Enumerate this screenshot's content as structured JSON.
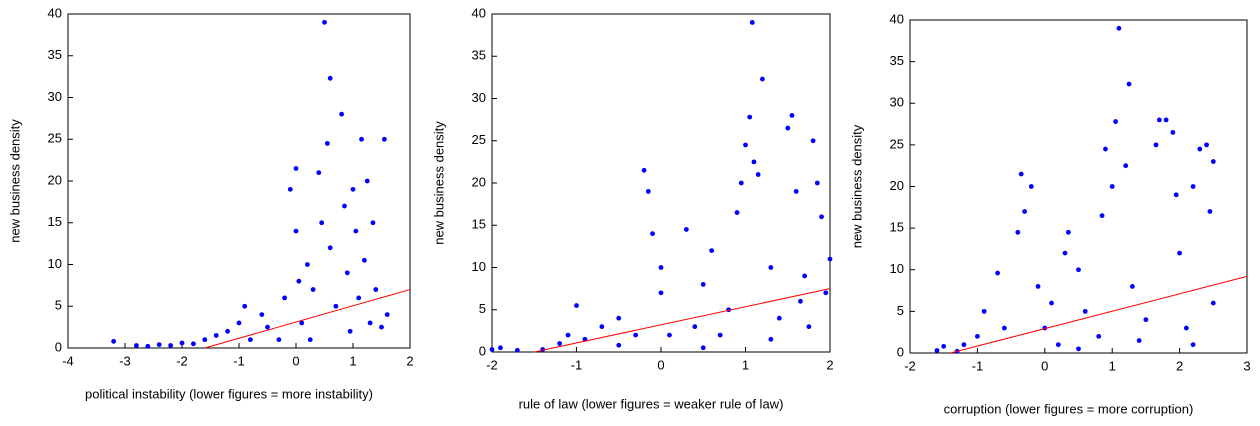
{
  "chart_data": [
    {
      "type": "scatter",
      "x_label": "political instability (lower figures = more instability)",
      "y_label": "new business density",
      "xlim": [
        -4,
        2
      ],
      "xticks": [
        -4,
        -3,
        -2,
        -1,
        0,
        1,
        2
      ],
      "ylim": [
        0,
        40
      ],
      "yticks": [
        0,
        5,
        10,
        15,
        20,
        25,
        30,
        35,
        40
      ],
      "series": [
        {
          "color": "#0000ff",
          "x": [
            -3.2,
            -2.8,
            -2.6,
            -2.4,
            -2.2,
            -2,
            -1.8,
            -1.6,
            -1.4,
            -1.2,
            -1,
            -0.9,
            -0.8,
            -0.6,
            -0.5,
            -0.3,
            -0.2,
            -0.1,
            0,
            0,
            0.05,
            0.1,
            0.2,
            0.25,
            0.3,
            0.4,
            0.45,
            0.5,
            0.55,
            0.6,
            0.6,
            0.7,
            0.8,
            0.85,
            0.9,
            0.95,
            1,
            1.05,
            1.1,
            1.15,
            1.2,
            1.25,
            1.3,
            1.35,
            1.4,
            1.5,
            1.55,
            1.6
          ],
          "y": [
            0.8,
            0.3,
            0.2,
            0.4,
            0.3,
            0.6,
            0.5,
            1,
            1.5,
            2,
            3,
            5,
            1,
            4,
            2.5,
            1,
            6,
            19,
            21.5,
            14,
            8,
            3,
            10,
            1,
            7,
            21,
            15,
            39,
            24.5,
            32.3,
            12,
            5,
            28,
            17,
            9,
            2,
            19,
            14,
            6,
            25,
            10.5,
            20,
            3,
            15,
            7,
            2.5,
            25,
            4
          ]
        }
      ],
      "fit_line": {
        "color": "#ff0000",
        "x": [
          -1.6,
          2
        ],
        "y": [
          0,
          7
        ]
      }
    },
    {
      "type": "scatter",
      "x_label": "rule of law (lower figures = weaker rule of law)",
      "y_label": "new business density",
      "xlim": [
        -2,
        2
      ],
      "xticks": [
        -2,
        -1,
        0,
        1,
        2
      ],
      "ylim": [
        0,
        40
      ],
      "yticks": [
        0,
        5,
        10,
        15,
        20,
        25,
        30,
        35,
        40
      ],
      "series": [
        {
          "color": "#0000ff",
          "x": [
            -2,
            -1.9,
            -1.7,
            -1.4,
            -1.2,
            -1.1,
            -1,
            -0.9,
            -0.7,
            -0.5,
            -0.3,
            -0.2,
            -0.15,
            -0.1,
            0,
            0,
            0.1,
            0.3,
            0.4,
            0.5,
            0.6,
            0.7,
            0.8,
            0.9,
            0.95,
            1,
            1.05,
            1.08,
            1.1,
            1.15,
            1.2,
            1.3,
            1.4,
            1.5,
            1.55,
            1.6,
            1.65,
            1.7,
            1.75,
            1.8,
            1.85,
            1.9,
            1.95,
            2,
            1.3,
            0.5,
            -0.5
          ],
          "y": [
            0.3,
            0.5,
            0.2,
            0.3,
            1,
            2,
            5.5,
            1.5,
            3,
            4,
            2,
            21.5,
            19,
            14,
            10,
            7,
            2,
            14.5,
            3,
            8,
            12,
            2,
            5,
            16.5,
            20,
            24.5,
            27.8,
            39,
            22.5,
            21,
            32.3,
            10,
            4,
            26.5,
            28,
            19,
            6,
            9,
            3,
            25,
            20,
            16,
            7,
            11,
            1.5,
            0.5,
            0.8
          ]
        }
      ],
      "fit_line": {
        "color": "#ff0000",
        "x": [
          -1.5,
          2
        ],
        "y": [
          0,
          7.5
        ]
      }
    },
    {
      "type": "scatter",
      "x_label": "corruption (lower figures = more corruption)",
      "y_label": "new business density",
      "xlim": [
        -2,
        3
      ],
      "xticks": [
        -2,
        -1,
        0,
        1,
        2,
        3
      ],
      "ylim": [
        0,
        40
      ],
      "yticks": [
        0,
        5,
        10,
        15,
        20,
        25,
        30,
        35,
        40
      ],
      "series": [
        {
          "color": "#0000ff",
          "x": [
            -1.6,
            -1.5,
            -1.3,
            -1.2,
            -1,
            -0.9,
            -0.7,
            -0.6,
            -0.4,
            -0.35,
            -0.3,
            -0.2,
            -0.1,
            0,
            0.1,
            0.2,
            0.3,
            0.35,
            0.5,
            0.6,
            0.8,
            0.85,
            0.9,
            1,
            1.05,
            1.1,
            1.2,
            1.25,
            1.3,
            1.5,
            1.65,
            1.7,
            1.8,
            1.9,
            1.95,
            2,
            2.1,
            2.2,
            2.3,
            2.4,
            2.5,
            2.45,
            2.5,
            2.2,
            1.4,
            0.5
          ],
          "y": [
            0.3,
            0.8,
            0.2,
            1,
            2,
            5,
            9.6,
            3,
            14.5,
            21.5,
            17,
            20,
            8,
            3,
            6,
            1,
            12,
            14.5,
            10,
            5,
            2,
            16.5,
            24.5,
            20,
            27.8,
            39,
            22.5,
            32.3,
            8,
            4,
            25,
            28,
            28,
            26.5,
            19,
            12,
            3,
            20,
            24.5,
            25,
            23,
            17,
            6,
            1,
            1.5,
            0.5
          ]
        }
      ],
      "fit_line": {
        "color": "#ff0000",
        "x": [
          -1.4,
          3
        ],
        "y": [
          0,
          9.2
        ]
      }
    }
  ]
}
